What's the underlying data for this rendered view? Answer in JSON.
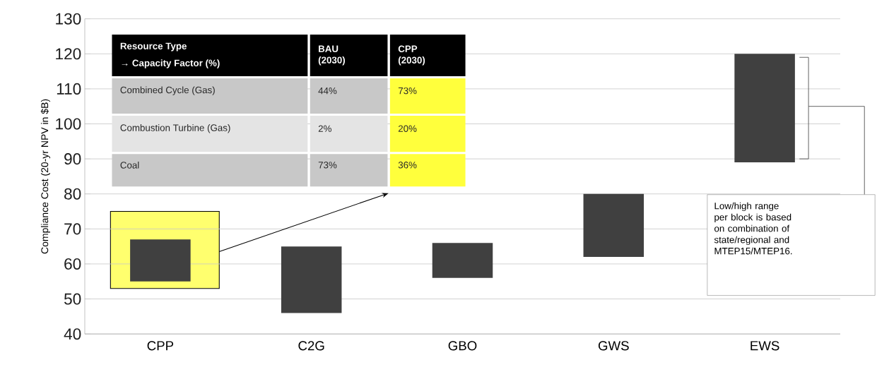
{
  "chart_data": {
    "type": "bar",
    "ylabel": "Compliance Cost (20-yr NPV in $B)",
    "categories": [
      "CPP",
      "C2G",
      "GBO",
      "GWS",
      "EWS"
    ],
    "base": [
      55,
      46,
      56,
      62,
      89
    ],
    "values": [
      12,
      19,
      10,
      18,
      31
    ],
    "color": "#404040",
    "ylim": [
      40,
      130
    ],
    "yticks": [
      40,
      50,
      60,
      70,
      80,
      90,
      100,
      110,
      120,
      130
    ],
    "grid": "y",
    "annotations": [
      "Resource Type",
      "→ Capacity Factor (%)",
      "BAU (2030)",
      "CPP (2030)",
      "Combined Cycle (Gas)",
      "44%",
      "73%",
      "Combustion Turbine (Gas)",
      "2%",
      "20%",
      "Coal",
      "73%",
      "36%",
      "Low/high range per block is based on combination of state/regional and MTEP15/MTEP16."
    ]
  }
}
